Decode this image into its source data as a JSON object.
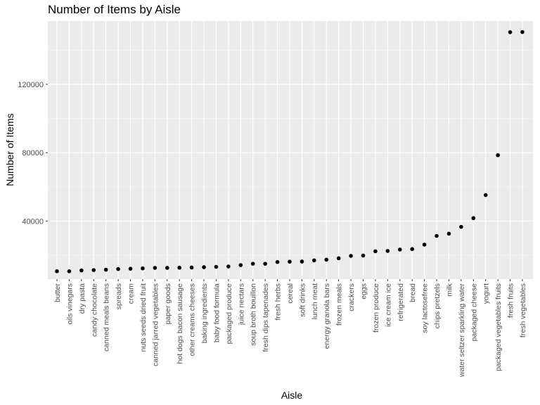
{
  "chart_data": {
    "type": "scatter",
    "title": "Number of Items by Aisle",
    "xlabel": "Aisle",
    "ylabel": "Number of Items",
    "y_ticks": [
      40000,
      80000,
      120000
    ],
    "y_tick_labels": [
      "40000",
      "80000",
      "120000"
    ],
    "ylim": [
      6000,
      157000
    ],
    "grid": true,
    "points": [
      {
        "x": "butter",
        "y": 10600
      },
      {
        "x": "oils vinegars",
        "y": 10600
      },
      {
        "x": "dry pasta",
        "y": 11100
      },
      {
        "x": "candy chocolate",
        "y": 11300
      },
      {
        "x": "canned meals beans",
        "y": 11500
      },
      {
        "x": "spreads",
        "y": 11900
      },
      {
        "x": "cream",
        "y": 12100
      },
      {
        "x": "nuts seeds dried fruit",
        "y": 12300
      },
      {
        "x": "canned jarred vegetables",
        "y": 12600
      },
      {
        "x": "paper goods",
        "y": 12600
      },
      {
        "x": "hot dogs bacon sausage",
        "y": 12700
      },
      {
        "x": "other creams cheeses",
        "y": 12800
      },
      {
        "x": "baking ingredients",
        "y": 13000
      },
      {
        "x": "baby food formula",
        "y": 13200
      },
      {
        "x": "packaged produce",
        "y": 13400
      },
      {
        "x": "juice nectars",
        "y": 14200
      },
      {
        "x": "soup broth bouillon",
        "y": 15000
      },
      {
        "x": "fresh dips tapenades",
        "y": 15000
      },
      {
        "x": "fresh herbs",
        "y": 16000
      },
      {
        "x": "cereal",
        "y": 16200
      },
      {
        "x": "soft drinks",
        "y": 16300
      },
      {
        "x": "lunch meat",
        "y": 17000
      },
      {
        "x": "energy granola bars",
        "y": 17400
      },
      {
        "x": "frozen meals",
        "y": 18200
      },
      {
        "x": "crackers",
        "y": 19600
      },
      {
        "x": "eggs",
        "y": 19800
      },
      {
        "x": "frozen produce",
        "y": 22300
      },
      {
        "x": "ice cream ice",
        "y": 22500
      },
      {
        "x": "refrigerated",
        "y": 23300
      },
      {
        "x": "bread",
        "y": 23600
      },
      {
        "x": "soy lactosefree",
        "y": 26200
      },
      {
        "x": "chips pretzels",
        "y": 31300
      },
      {
        "x": "milk",
        "y": 32600
      },
      {
        "x": "water seltzer sparkling water",
        "y": 36600
      },
      {
        "x": "packaged cheese",
        "y": 41700
      },
      {
        "x": "yogurt",
        "y": 55200
      },
      {
        "x": "packaged vegetables fruits",
        "y": 78500
      },
      {
        "x": "fresh fruits",
        "y": 150500
      },
      {
        "x": "fresh vegetables",
        "y": 150600
      }
    ]
  }
}
